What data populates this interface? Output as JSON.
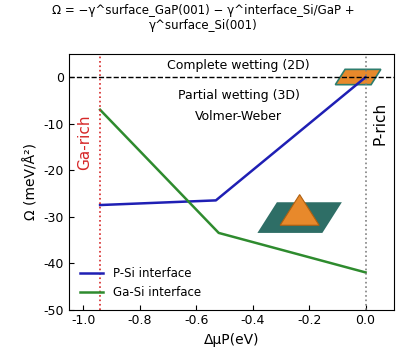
{
  "chart_data": {
    "type": "line",
    "title": "Ω = −γ^surface_GaP(001) − γ^interface_Si/GaP + γ^surface_Si(001)",
    "x_label": "ΔμP(eV)",
    "y_label": "Ω (meV/Å²)",
    "series": [
      {
        "name": "P-Si interface",
        "color": "#1f1fb4",
        "x": [
          -0.94,
          -0.53,
          0.0
        ],
        "values": [
          -27.5,
          -26.5,
          0.0
        ]
      },
      {
        "name": "Ga-Si interface",
        "color": "#2e8b2e",
        "x": [
          -0.94,
          -0.52,
          0.0
        ],
        "values": [
          -7.0,
          -33.5,
          -42.0
        ]
      }
    ],
    "xlim": [
      -1.05,
      0.1
    ],
    "xticks": [
      -1.0,
      -0.8,
      -0.6,
      -0.4,
      -0.2,
      0.0
    ],
    "ylim": [
      -50,
      5
    ],
    "yticks": [
      -50,
      -40,
      -30,
      -20,
      -10,
      0
    ],
    "hlines": [
      {
        "y": 0,
        "color": "#000000",
        "line_style": "dashed"
      }
    ],
    "vlines": [
      {
        "x": -0.94,
        "color": "#d62728",
        "line_style": "dotted"
      },
      {
        "x": 0.0,
        "color": "#808080",
        "line_style": "dotted"
      }
    ],
    "annotations": [
      {
        "text": "Complete wetting (2D)",
        "color": "#000000"
      },
      {
        "text": "Partial wetting (3D)",
        "color": "#000000"
      },
      {
        "text": "Volmer-Weber",
        "color": "#000000"
      },
      {
        "text": "Ga-rich",
        "color": "#d62728"
      },
      {
        "text": "P-rich",
        "color": "#000000"
      }
    ],
    "legend": "lower left",
    "grid": false
  }
}
